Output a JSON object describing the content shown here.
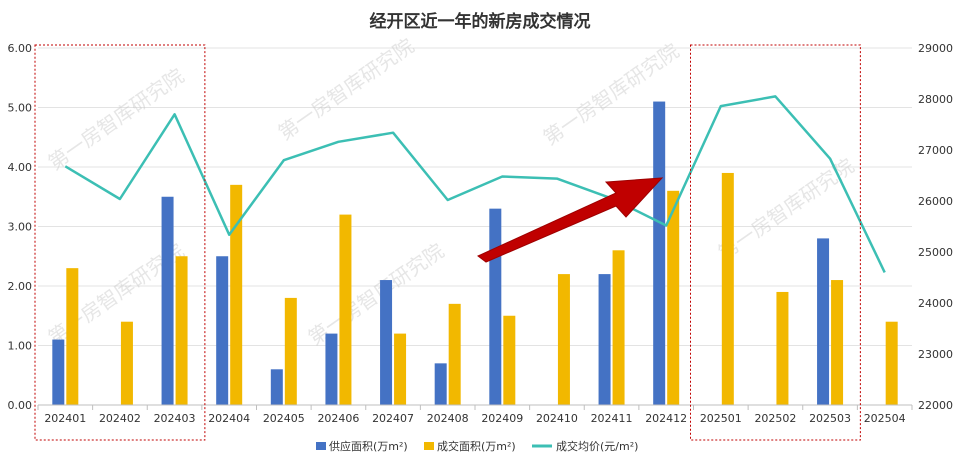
{
  "chart_data": {
    "type": "bar",
    "title": "经开区近一年的新房成交情况",
    "categories": [
      "202401",
      "202402",
      "202403",
      "202404",
      "202405",
      "202406",
      "202407",
      "202408",
      "202409",
      "202410",
      "202411",
      "202412",
      "202501",
      "202502",
      "202503",
      "202504"
    ],
    "series": [
      {
        "name": "供应面积(万m²)",
        "type": "bar",
        "axis": "left",
        "color": "#4472C4",
        "values": [
          1.1,
          null,
          3.5,
          2.5,
          0.6,
          1.2,
          2.1,
          0.7,
          3.3,
          null,
          2.2,
          5.1,
          null,
          null,
          2.8,
          null
        ]
      },
      {
        "name": "成交面积(万m²)",
        "type": "bar",
        "axis": "left",
        "color": "#F2B800",
        "values": [
          2.3,
          1.4,
          2.5,
          3.7,
          1.8,
          3.2,
          1.2,
          1.7,
          1.5,
          2.2,
          2.6,
          3.6,
          3.9,
          1.9,
          2.1,
          1.4
        ]
      },
      {
        "name": "成交均价(元/m²)",
        "type": "line",
        "axis": "right",
        "color": "#3CBFB4",
        "values": [
          26680,
          26040,
          27700,
          25340,
          26800,
          27160,
          27340,
          26020,
          26480,
          26440,
          26050,
          25520,
          27860,
          28050,
          26830,
          24600
        ]
      }
    ],
    "y_left": {
      "min": 0,
      "max": 6,
      "step": 1,
      "ticks": [
        "0.00",
        "1.00",
        "2.00",
        "3.00",
        "4.00",
        "5.00",
        "6.00"
      ]
    },
    "y_right": {
      "min": 22000,
      "max": 29000,
      "step": 1000,
      "ticks": [
        "22000",
        "23000",
        "24000",
        "25000",
        "26000",
        "27000",
        "28000",
        "29000"
      ]
    },
    "grid": true,
    "legend_position": "bottom",
    "watermark": "第一房智库研究院",
    "highlight_groups": [
      [
        0,
        2
      ],
      [
        12,
        14
      ]
    ]
  }
}
